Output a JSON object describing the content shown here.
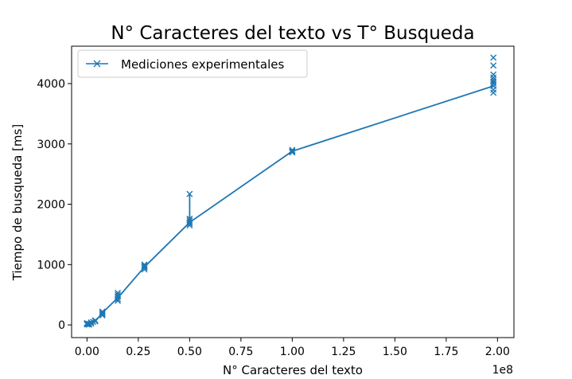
{
  "chart_data": {
    "type": "line",
    "title": "N° Caracteres del texto vs T° Busqueda",
    "xlabel": "N° Caracteres del texto",
    "ylabel": "Tiempo de busqueda [ms]",
    "x_offset_label": "1e8",
    "xlim": [
      -0.075,
      2.08
    ],
    "ylim": [
      -210,
      4620
    ],
    "xticks": [
      0.0,
      0.25,
      0.5,
      0.75,
      1.0,
      1.25,
      1.5,
      1.75,
      2.0
    ],
    "xtick_labels": [
      "0.00",
      "0.25",
      "0.50",
      "0.75",
      "1.00",
      "1.25",
      "1.50",
      "1.75",
      "2.00"
    ],
    "yticks": [
      0,
      1000,
      2000,
      3000,
      4000
    ],
    "ytick_labels": [
      "0",
      "1000",
      "2000",
      "3000",
      "4000"
    ],
    "grid": false,
    "legend_position": "top-left",
    "color": "#1f77b4",
    "series": [
      {
        "name": "Mediciones experimentales",
        "marker": "x",
        "line_x": [
          0.0,
          0.0,
          0.01,
          0.02,
          0.04,
          0.075,
          0.15,
          0.28,
          0.5,
          0.5,
          0.5,
          1.0,
          1.0,
          1.98,
          1.98
        ],
        "line_y": [
          0,
          20,
          20,
          40,
          60,
          200,
          450,
          960,
          1700,
          2170,
          1700,
          2880,
          2880,
          3960,
          3960
        ],
        "points": [
          [
            0.0,
            10
          ],
          [
            0.0,
            20
          ],
          [
            0.0,
            30
          ],
          [
            0.005,
            15
          ],
          [
            0.01,
            20
          ],
          [
            0.01,
            5
          ],
          [
            0.02,
            25
          ],
          [
            0.02,
            40
          ],
          [
            0.03,
            50
          ],
          [
            0.04,
            60
          ],
          [
            0.04,
            75
          ],
          [
            0.075,
            160
          ],
          [
            0.075,
            200
          ],
          [
            0.075,
            220
          ],
          [
            0.075,
            180
          ],
          [
            0.15,
            400
          ],
          [
            0.15,
            430
          ],
          [
            0.15,
            470
          ],
          [
            0.15,
            500
          ],
          [
            0.15,
            530
          ],
          [
            0.28,
            920
          ],
          [
            0.28,
            950
          ],
          [
            0.28,
            980
          ],
          [
            0.28,
            1000
          ],
          [
            0.28,
            960
          ],
          [
            0.5,
            1650
          ],
          [
            0.5,
            1700
          ],
          [
            0.5,
            1730
          ],
          [
            0.5,
            1760
          ],
          [
            0.5,
            1680
          ],
          [
            0.5,
            2170
          ],
          [
            1.0,
            2860
          ],
          [
            1.0,
            2880
          ],
          [
            1.0,
            2900
          ],
          [
            1.0,
            2870
          ],
          [
            1.98,
            3850
          ],
          [
            1.98,
            3900
          ],
          [
            1.98,
            3960
          ],
          [
            1.98,
            4000
          ],
          [
            1.98,
            4030
          ],
          [
            1.98,
            4060
          ],
          [
            1.98,
            4100
          ],
          [
            1.98,
            4150
          ],
          [
            1.98,
            4300
          ],
          [
            1.98,
            4430
          ]
        ]
      }
    ]
  }
}
